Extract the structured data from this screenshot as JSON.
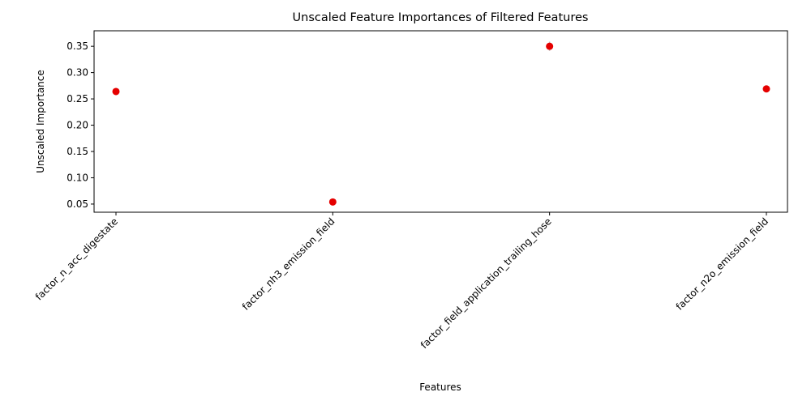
{
  "chart_data": {
    "type": "scatter",
    "title": "Unscaled Feature Importances of Filtered Features",
    "xlabel": "Features",
    "ylabel": "Unscaled Importance",
    "categories": [
      "factor_n_acc_digestate",
      "factor_nh3_emission_field",
      "factor_field_application_trailing_hose",
      "factor_n2o_emission_field"
    ],
    "values": [
      0.264,
      0.054,
      0.35,
      0.269
    ],
    "errors": [
      0.007,
      0.002,
      0.009,
      0.003
    ],
    "yticks": [
      0.05,
      0.1,
      0.15,
      0.2,
      0.25,
      0.3,
      0.35
    ],
    "ylim": [
      0.0345,
      0.3795
    ],
    "grid": false,
    "marker_color": "#e50000",
    "errorbar_color": "#cccccc"
  }
}
